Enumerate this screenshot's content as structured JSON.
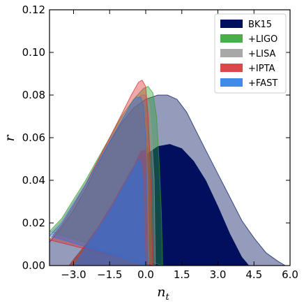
{
  "chart_data": {
    "type": "area",
    "title": "",
    "xlabel": "n",
    "xlabel_sub": "t",
    "ylabel": "r",
    "xlim": [
      -4.0,
      6.0
    ],
    "ylim": [
      0.0,
      0.12
    ],
    "x_ticks": [
      -3.0,
      -1.5,
      0.0,
      1.5,
      3.0,
      4.5,
      6.0
    ],
    "x_tick_labels": [
      "−3.0",
      "−1.5",
      "0.0",
      "1.5",
      "3.0",
      "4.5",
      "6.0"
    ],
    "y_ticks": [
      0.0,
      0.02,
      0.04,
      0.06,
      0.08,
      0.1,
      0.12
    ],
    "y_tick_labels": [
      "0.00",
      "0.02",
      "0.04",
      "0.06",
      "0.08",
      "0.10",
      "0.12"
    ],
    "grid": false,
    "legend_position": "top-right",
    "series": [
      {
        "name": "BK15",
        "color": "#00105e",
        "contour_95": [
          [
            -4.0,
            0.011
          ],
          [
            -3.5,
            0.018
          ],
          [
            -3.0,
            0.026
          ],
          [
            -2.5,
            0.036
          ],
          [
            -2.0,
            0.047
          ],
          [
            -1.5,
            0.058
          ],
          [
            -1.0,
            0.067
          ],
          [
            -0.5,
            0.074
          ],
          [
            0.0,
            0.078
          ],
          [
            0.5,
            0.08
          ],
          [
            0.9,
            0.08
          ],
          [
            1.3,
            0.078
          ],
          [
            1.7,
            0.072
          ],
          [
            2.1,
            0.063
          ],
          [
            2.5,
            0.054
          ],
          [
            3.0,
            0.043
          ],
          [
            3.5,
            0.032
          ],
          [
            4.0,
            0.021
          ],
          [
            4.5,
            0.013
          ],
          [
            5.0,
            0.006
          ],
          [
            5.5,
            0.002
          ],
          [
            5.8,
            0.0
          ],
          [
            -4.0,
            0.0
          ]
        ],
        "contour_68": [
          [
            -3.2,
            0.0
          ],
          [
            -3.0,
            0.003
          ],
          [
            -2.5,
            0.01
          ],
          [
            -2.0,
            0.018
          ],
          [
            -1.5,
            0.027
          ],
          [
            -1.0,
            0.037
          ],
          [
            -0.5,
            0.046
          ],
          [
            0.0,
            0.052
          ],
          [
            0.5,
            0.056
          ],
          [
            1.0,
            0.057
          ],
          [
            1.5,
            0.055
          ],
          [
            2.0,
            0.049
          ],
          [
            2.5,
            0.04
          ],
          [
            3.0,
            0.028
          ],
          [
            3.5,
            0.015
          ],
          [
            4.0,
            0.004
          ],
          [
            4.3,
            0.0
          ]
        ]
      },
      {
        "name": "+LIGO",
        "color": "#2ca02c",
        "contour_95": [
          [
            -4.0,
            0.016
          ],
          [
            -3.5,
            0.022
          ],
          [
            -3.0,
            0.031
          ],
          [
            -2.5,
            0.04
          ],
          [
            -2.0,
            0.05
          ],
          [
            -1.5,
            0.06
          ],
          [
            -1.0,
            0.07
          ],
          [
            -0.5,
            0.078
          ],
          [
            -0.1,
            0.083
          ],
          [
            0.1,
            0.084
          ],
          [
            0.3,
            0.081
          ],
          [
            0.45,
            0.07
          ],
          [
            0.55,
            0.05
          ],
          [
            0.65,
            0.025
          ],
          [
            0.7,
            0.0
          ]
        ],
        "contour_68": [
          [
            -3.2,
            0.0
          ],
          [
            -2.5,
            0.01
          ],
          [
            -2.0,
            0.018
          ],
          [
            -1.5,
            0.027
          ],
          [
            -1.0,
            0.037
          ],
          [
            -0.5,
            0.046
          ],
          [
            -0.1,
            0.054
          ],
          [
            0.1,
            0.056
          ],
          [
            0.2,
            0.05
          ],
          [
            0.25,
            0.03
          ],
          [
            0.3,
            0.0
          ]
        ]
      },
      {
        "name": "+LISA",
        "color": "#999999",
        "contour_95": [
          [
            -4.0,
            0.015
          ],
          [
            -3.5,
            0.021
          ],
          [
            -3.0,
            0.03
          ],
          [
            -2.5,
            0.039
          ],
          [
            -2.0,
            0.049
          ],
          [
            -1.5,
            0.059
          ],
          [
            -1.0,
            0.068
          ],
          [
            -0.5,
            0.076
          ],
          [
            -0.2,
            0.08
          ],
          [
            0.0,
            0.08
          ],
          [
            0.15,
            0.075
          ],
          [
            0.25,
            0.06
          ],
          [
            0.35,
            0.04
          ],
          [
            0.4,
            0.0
          ]
        ],
        "contour_68": [
          [
            -3.2,
            0.0
          ],
          [
            -2.5,
            0.01
          ],
          [
            -2.0,
            0.018
          ],
          [
            -1.5,
            0.027
          ],
          [
            -1.0,
            0.037
          ],
          [
            -0.5,
            0.046
          ],
          [
            -0.1,
            0.053
          ],
          [
            0.05,
            0.054
          ],
          [
            0.1,
            0.04
          ],
          [
            0.15,
            0.0
          ]
        ]
      },
      {
        "name": "+IPTA",
        "color": "#d62728",
        "contour_95": [
          [
            -4.0,
            0.012
          ],
          [
            -3.5,
            0.019
          ],
          [
            -3.0,
            0.028
          ],
          [
            -2.5,
            0.038
          ],
          [
            -2.0,
            0.049
          ],
          [
            -1.5,
            0.06
          ],
          [
            -1.0,
            0.071
          ],
          [
            -0.6,
            0.08
          ],
          [
            -0.3,
            0.086
          ],
          [
            -0.15,
            0.087
          ],
          [
            0.0,
            0.084
          ],
          [
            0.1,
            0.07
          ],
          [
            0.2,
            0.045
          ],
          [
            0.25,
            0.02
          ],
          [
            0.3,
            0.0
          ]
        ],
        "contour_68": [
          [
            -3.2,
            0.0
          ],
          [
            -2.5,
            0.01
          ],
          [
            -2.0,
            0.018
          ],
          [
            -1.5,
            0.027
          ],
          [
            -1.0,
            0.037
          ],
          [
            -0.5,
            0.047
          ],
          [
            -0.2,
            0.054
          ],
          [
            0.0,
            0.054
          ],
          [
            0.05,
            0.04
          ],
          [
            0.1,
            0.0
          ]
        ]
      },
      {
        "name": "+FAST",
        "color": "#1f77e4",
        "contour_95": [
          [
            -4.0,
            0.014
          ],
          [
            -3.5,
            0.02
          ],
          [
            -3.0,
            0.029
          ],
          [
            -2.5,
            0.038
          ],
          [
            -2.0,
            0.048
          ],
          [
            -1.5,
            0.058
          ],
          [
            -1.0,
            0.068
          ],
          [
            -0.6,
            0.076
          ],
          [
            -0.4,
            0.079
          ],
          [
            -0.2,
            0.079
          ],
          [
            -0.1,
            0.075
          ],
          [
            0.0,
            0.06
          ],
          [
            0.05,
            0.035
          ],
          [
            0.1,
            0.0
          ]
        ],
        "contour_68": [
          [
            -3.0,
            0.0
          ],
          [
            -2.5,
            0.009
          ],
          [
            -2.0,
            0.017
          ],
          [
            -1.5,
            0.026
          ],
          [
            -1.0,
            0.036
          ],
          [
            -0.6,
            0.044
          ],
          [
            -0.35,
            0.049
          ],
          [
            -0.2,
            0.05
          ],
          [
            -0.1,
            0.04
          ],
          [
            -0.05,
            0.02
          ],
          [
            0.0,
            0.0
          ]
        ]
      }
    ]
  }
}
